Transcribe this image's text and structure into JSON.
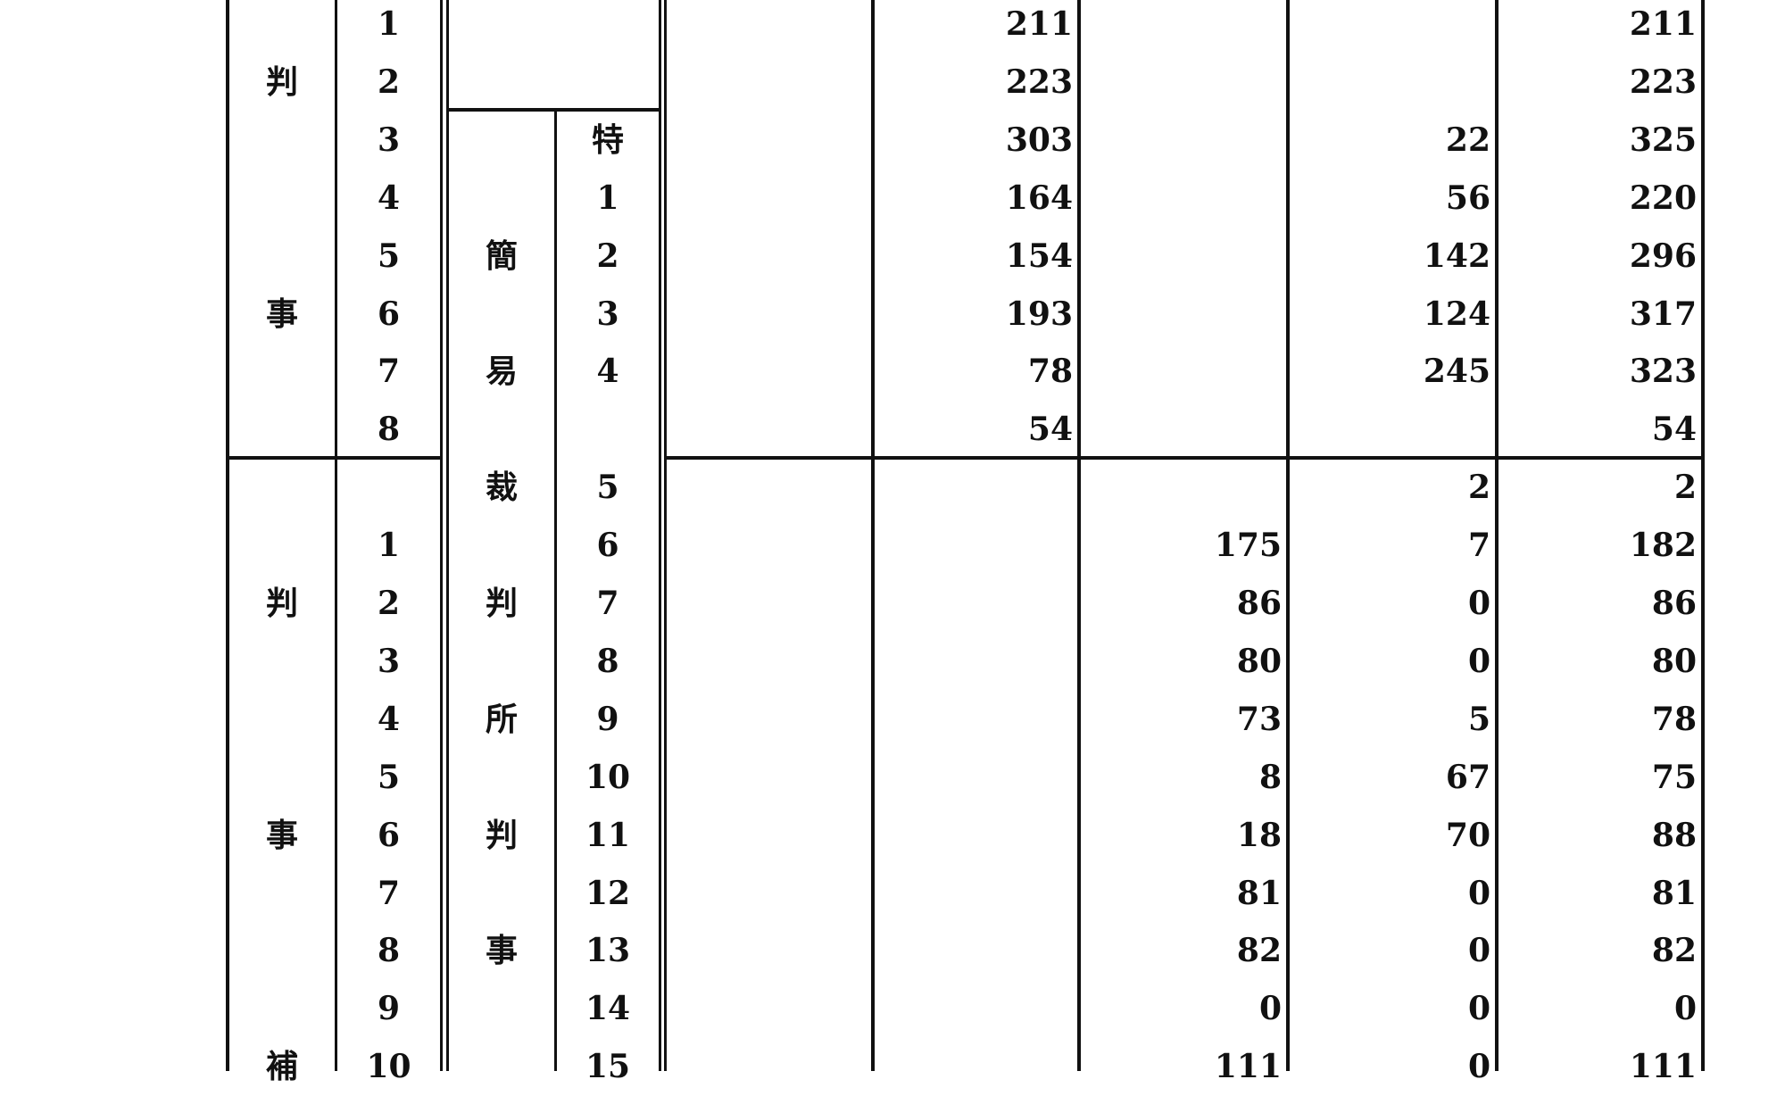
{
  "table": {
    "rows": [
      {
        "group": "",
        "no": "1",
        "sub": "",
        "subno": "",
        "a": "211",
        "b": "",
        "c": "",
        "total": "211"
      },
      {
        "group": "判",
        "no": "2",
        "sub": "",
        "subno": "",
        "a": "223",
        "b": "",
        "c": "",
        "total": "223"
      },
      {
        "group": "",
        "no": "3",
        "sub": "",
        "subno": "特",
        "a": "303",
        "b": "",
        "c": "22",
        "total": "325"
      },
      {
        "group": "",
        "no": "4",
        "sub": "",
        "subno": "1",
        "a": "164",
        "b": "",
        "c": "56",
        "total": "220"
      },
      {
        "group": "",
        "no": "5",
        "sub": "簡",
        "subno": "2",
        "a": "154",
        "b": "",
        "c": "142",
        "total": "296"
      },
      {
        "group": "事",
        "no": "6",
        "sub": "",
        "subno": "3",
        "a": "193",
        "b": "",
        "c": "124",
        "total": "317"
      },
      {
        "group": "",
        "no": "7",
        "sub": "易",
        "subno": "4",
        "a": "78",
        "b": "",
        "c": "245",
        "total": "323"
      },
      {
        "group": "",
        "no": "8",
        "sub": "",
        "subno": "",
        "a": "54",
        "b": "",
        "c": "",
        "total": "54"
      },
      {
        "group": "",
        "no": "",
        "sub": "裁",
        "subno": "5",
        "a": "",
        "b": "",
        "c": "2",
        "total": "2"
      },
      {
        "group": "",
        "no": "1",
        "sub": "",
        "subno": "6",
        "a": "",
        "b": "175",
        "c": "7",
        "total": "182"
      },
      {
        "group": "判",
        "no": "2",
        "sub": "判",
        "subno": "7",
        "a": "",
        "b": "86",
        "c": "0",
        "total": "86"
      },
      {
        "group": "",
        "no": "3",
        "sub": "",
        "subno": "8",
        "a": "",
        "b": "80",
        "c": "0",
        "total": "80"
      },
      {
        "group": "",
        "no": "4",
        "sub": "所",
        "subno": "9",
        "a": "",
        "b": "73",
        "c": "5",
        "total": "78"
      },
      {
        "group": "",
        "no": "5",
        "sub": "",
        "subno": "10",
        "a": "",
        "b": "8",
        "c": "67",
        "total": "75"
      },
      {
        "group": "事",
        "no": "6",
        "sub": "判",
        "subno": "11",
        "a": "",
        "b": "18",
        "c": "70",
        "total": "88"
      },
      {
        "group": "",
        "no": "7",
        "sub": "",
        "subno": "12",
        "a": "",
        "b": "81",
        "c": "0",
        "total": "81"
      },
      {
        "group": "",
        "no": "8",
        "sub": "事",
        "subno": "13",
        "a": "",
        "b": "82",
        "c": "0",
        "total": "82"
      },
      {
        "group": "",
        "no": "9",
        "sub": "",
        "subno": "14",
        "a": "",
        "b": "0",
        "c": "0",
        "total": "0"
      },
      {
        "group": "補",
        "no": "10",
        "sub": "",
        "subno": "15",
        "a": "",
        "b": "111",
        "c": "0",
        "total": "111"
      }
    ]
  }
}
